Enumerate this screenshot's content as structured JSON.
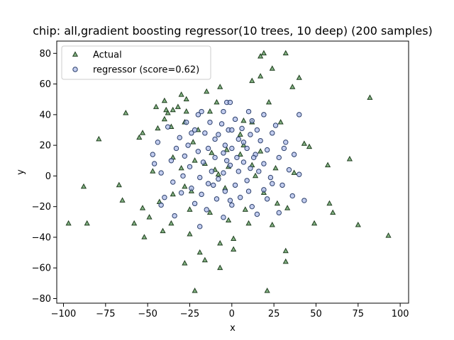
{
  "chart_data": {
    "type": "scatter",
    "title": "chip: all,gradient boosting regressor(10 trees, 10 deep) (200 samples)",
    "xlabel": "x",
    "ylabel": "y",
    "xlim": [
      -104,
      105
    ],
    "ylim": [
      -83,
      88
    ],
    "xticks": [
      -100,
      -75,
      -50,
      -25,
      0,
      25,
      50,
      75,
      100
    ],
    "yticks": [
      -80,
      -60,
      -40,
      -20,
      0,
      20,
      40,
      60,
      80
    ],
    "grid": false,
    "legend_position": "upper-left",
    "series": [
      {
        "name": "Actual",
        "marker": "triangle",
        "color": "#2ca02c",
        "fill": "#5a9a5a",
        "edge": "#1f3d1f",
        "points": [
          [
            19,
            80
          ],
          [
            32,
            80
          ],
          [
            17,
            78
          ],
          [
            24,
            70
          ],
          [
            17,
            65
          ],
          [
            40,
            64
          ],
          [
            12,
            62
          ],
          [
            -7,
            58
          ],
          [
            36,
            58
          ],
          [
            -15,
            55
          ],
          [
            -30,
            53
          ],
          [
            82,
            51
          ],
          [
            -40,
            49
          ],
          [
            -27,
            50
          ],
          [
            -9,
            48
          ],
          [
            22,
            48
          ],
          [
            -45,
            45
          ],
          [
            -32,
            45
          ],
          [
            -39,
            43
          ],
          [
            -35,
            43
          ],
          [
            -27,
            42
          ],
          [
            -13,
            42
          ],
          [
            -38,
            41
          ],
          [
            -63,
            41
          ],
          [
            -40,
            37
          ],
          [
            7,
            36
          ],
          [
            -28,
            35
          ],
          [
            12,
            35
          ],
          [
            29,
            35
          ],
          [
            -36,
            32
          ],
          [
            -44,
            31
          ],
          [
            -20,
            30
          ],
          [
            -53,
            28
          ],
          [
            -55,
            25
          ],
          [
            -79,
            24
          ],
          [
            -23,
            22
          ],
          [
            43,
            21
          ],
          [
            46,
            19
          ],
          [
            7,
            20
          ],
          [
            -3,
            17
          ],
          [
            17,
            16
          ],
          [
            -12,
            15
          ],
          [
            5,
            14
          ],
          [
            -35,
            12
          ],
          [
            70,
            11
          ],
          [
            -22,
            10
          ],
          [
            -16,
            8
          ],
          [
            12,
            7
          ],
          [
            57,
            7
          ],
          [
            -2,
            6
          ],
          [
            26,
            5
          ],
          [
            -30,
            5
          ],
          [
            -47,
            3
          ],
          [
            37,
            2
          ],
          [
            -8,
            1
          ],
          [
            14,
            0
          ],
          [
            -88,
            -7
          ],
          [
            -67,
            -6
          ],
          [
            -28,
            -7
          ],
          [
            -4,
            -8
          ],
          [
            -24,
            -10
          ],
          [
            19,
            -11
          ],
          [
            -35,
            -12
          ],
          [
            -65,
            -16
          ],
          [
            -43,
            -17
          ],
          [
            58,
            -18
          ],
          [
            27,
            -18
          ],
          [
            -53,
            -21
          ],
          [
            8,
            -22
          ],
          [
            -25,
            -22
          ],
          [
            -13,
            -24
          ],
          [
            -49,
            -27
          ],
          [
            -2,
            -29
          ],
          [
            -36,
            -31
          ],
          [
            -58,
            -31
          ],
          [
            10,
            -31
          ],
          [
            -86,
            -31
          ],
          [
            -97,
            -31
          ],
          [
            49,
            -31
          ],
          [
            75,
            -32
          ],
          [
            24,
            -32
          ],
          [
            -41,
            -36
          ],
          [
            -25,
            -38
          ],
          [
            -52,
            -40
          ],
          [
            1,
            -41
          ],
          [
            93,
            -39
          ],
          [
            -7,
            -44
          ],
          [
            1,
            -48
          ],
          [
            -19,
            -50
          ],
          [
            32,
            -49
          ],
          [
            -16,
            -55
          ],
          [
            -28,
            -57
          ],
          [
            32,
            -56
          ],
          [
            -7,
            -60
          ],
          [
            -22,
            -75
          ],
          [
            21,
            -75
          ],
          [
            60,
            -24
          ],
          [
            33,
            -21
          ],
          [
            -10,
            4
          ],
          [
            5,
            27
          ]
        ]
      },
      {
        "name": "regressor (score=0.62)",
        "marker": "circle",
        "color": "#4169e1",
        "fill": "#a9b8e8",
        "edge": "#2b3f6b",
        "points": [
          [
            -3,
            48
          ],
          [
            -1,
            48
          ],
          [
            -18,
            42
          ],
          [
            -5,
            42
          ],
          [
            10,
            42
          ],
          [
            19,
            40
          ],
          [
            40,
            40
          ],
          [
            -20,
            40
          ],
          [
            2,
            37
          ],
          [
            -13,
            35
          ],
          [
            -27,
            35
          ],
          [
            12,
            36
          ],
          [
            -38,
            32
          ],
          [
            -6,
            34
          ],
          [
            15,
            30
          ],
          [
            -2,
            30
          ],
          [
            -24,
            28
          ],
          [
            -16,
            28
          ],
          [
            0,
            30
          ],
          [
            24,
            28
          ],
          [
            11,
            27
          ],
          [
            -31,
            25
          ],
          [
            4,
            24
          ],
          [
            -10,
            24
          ],
          [
            7,
            22
          ],
          [
            32,
            22
          ],
          [
            -44,
            22
          ],
          [
            -26,
            20
          ],
          [
            -4,
            20
          ],
          [
            -14,
            18
          ],
          [
            0,
            18
          ],
          [
            9,
            18
          ],
          [
            21,
            17
          ],
          [
            -20,
            16
          ],
          [
            -5,
            15
          ],
          [
            14,
            14
          ],
          [
            37,
            14
          ],
          [
            -47,
            14
          ],
          [
            -28,
            13
          ],
          [
            -10,
            12
          ],
          [
            3,
            12
          ],
          [
            28,
            12
          ],
          [
            -36,
            10
          ],
          [
            -17,
            9
          ],
          [
            7,
            9
          ],
          [
            19,
            8
          ],
          [
            -1,
            7
          ],
          [
            -25,
            6
          ],
          [
            11,
            5
          ],
          [
            34,
            4
          ],
          [
            -42,
            2
          ],
          [
            -12,
            3
          ],
          [
            -5,
            2
          ],
          [
            4,
            3
          ],
          [
            16,
            3
          ],
          [
            40,
            1
          ],
          [
            -29,
            0
          ],
          [
            -19,
            -1
          ],
          [
            23,
            -1
          ],
          [
            -8,
            -2
          ],
          [
            9,
            -3
          ],
          [
            -35,
            -4
          ],
          [
            -14,
            -5
          ],
          [
            30,
            -6
          ],
          [
            2,
            -6
          ],
          [
            -24,
            -8
          ],
          [
            19,
            -9
          ],
          [
            -4,
            -10
          ],
          [
            10,
            -10
          ],
          [
            -30,
            -11
          ],
          [
            -18,
            -12
          ],
          [
            -40,
            -14
          ],
          [
            36,
            -13
          ],
          [
            5,
            -14
          ],
          [
            -9,
            -15
          ],
          [
            21,
            -15
          ],
          [
            -22,
            -18
          ],
          [
            -42,
            -19
          ],
          [
            0,
            -19
          ],
          [
            12,
            -20
          ],
          [
            -15,
            -22
          ],
          [
            28,
            -24
          ],
          [
            -34,
            -26
          ],
          [
            -5,
            -27
          ],
          [
            -19,
            -33
          ],
          [
            15,
            -25
          ],
          [
            43,
            -16
          ],
          [
            -1,
            -16
          ],
          [
            24,
            -5
          ],
          [
            -11,
            -6
          ],
          [
            17,
            23
          ],
          [
            -33,
            18
          ],
          [
            -22,
            30
          ],
          [
            26,
            33
          ],
          [
            6,
            31
          ],
          [
            -8,
            27
          ],
          [
            13,
            12
          ],
          [
            -3,
            10
          ],
          [
            31,
            18
          ],
          [
            -46,
            8
          ]
        ]
      }
    ]
  }
}
